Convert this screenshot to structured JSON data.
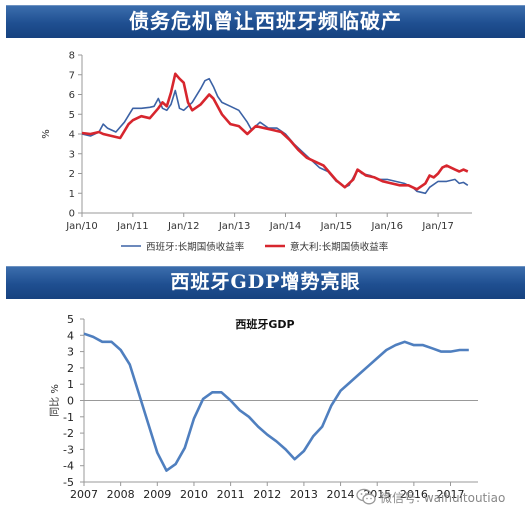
{
  "banner1": "债务危机曾让西班牙频临破产",
  "banner2": "西班牙GDP增势亮眼",
  "watermark": "微信号: waihuitoutiao",
  "colors": {
    "banner": "#1f4f91",
    "spain": "#3c62a5",
    "italy": "#d7262e",
    "gdp": "#4f7fbf",
    "axis": "#999999"
  },
  "chart_data": [
    {
      "type": "line",
      "title": "",
      "xlabel": "",
      "ylabel": "%",
      "ylim": [
        0,
        8
      ],
      "yticks": [
        "0",
        "1",
        "2",
        "3",
        "4",
        "5",
        "6",
        "7",
        "8"
      ],
      "xlim": [
        "2010-01",
        "2017-09"
      ],
      "xticks": [
        {
          "x": "2010-01",
          "label": "Jan/10"
        },
        {
          "x": "2011-01",
          "label": "Jan/11"
        },
        {
          "x": "2012-01",
          "label": "Jan/12"
        },
        {
          "x": "2013-01",
          "label": "Jan/13"
        },
        {
          "x": "2014-01",
          "label": "Jan/14"
        },
        {
          "x": "2015-01",
          "label": "Jan/15"
        },
        {
          "x": "2016-01",
          "label": "Jan/16"
        },
        {
          "x": "2017-01",
          "label": "Jan/17"
        }
      ],
      "grid": false,
      "legend": "bottom",
      "series": [
        {
          "name": "西班牙:长期国债收益率",
          "color": "#3c62a5",
          "x": [
            "2010-01",
            "2010-03",
            "2010-05",
            "2010-06",
            "2010-07",
            "2010-09",
            "2010-11",
            "2011-01",
            "2011-03",
            "2011-05",
            "2011-06",
            "2011-07",
            "2011-08",
            "2011-09",
            "2011-10",
            "2011-11",
            "2011-12",
            "2012-01",
            "2012-03",
            "2012-05",
            "2012-06",
            "2012-07",
            "2012-08",
            "2012-09",
            "2012-10",
            "2012-12",
            "2013-02",
            "2013-04",
            "2013-05",
            "2013-07",
            "2013-09",
            "2013-11",
            "2014-01",
            "2014-03",
            "2014-05",
            "2014-07",
            "2014-09",
            "2014-11",
            "2015-01",
            "2015-02",
            "2015-03",
            "2015-04",
            "2015-06",
            "2015-07",
            "2015-09",
            "2015-11",
            "2016-01",
            "2016-03",
            "2016-05",
            "2016-07",
            "2016-08",
            "2016-10",
            "2016-11",
            "2017-01",
            "2017-03",
            "2017-05",
            "2017-06",
            "2017-07",
            "2017-08"
          ],
          "values": [
            4.0,
            3.9,
            4.1,
            4.5,
            4.3,
            4.1,
            4.6,
            5.3,
            5.3,
            5.35,
            5.4,
            5.8,
            5.3,
            5.2,
            5.5,
            6.2,
            5.3,
            5.2,
            5.6,
            6.3,
            6.7,
            6.8,
            6.4,
            5.9,
            5.6,
            5.4,
            5.2,
            4.6,
            4.2,
            4.6,
            4.3,
            4.3,
            4.0,
            3.5,
            3.1,
            2.7,
            2.3,
            2.1,
            1.6,
            1.5,
            1.3,
            1.4,
            2.2,
            2.0,
            1.9,
            1.7,
            1.7,
            1.6,
            1.5,
            1.3,
            1.1,
            1.0,
            1.3,
            1.6,
            1.6,
            1.7,
            1.5,
            1.55,
            1.4
          ]
        },
        {
          "name": "意大利:长期国债收益率",
          "color": "#d7262e",
          "x": [
            "2010-01",
            "2010-03",
            "2010-05",
            "2010-06",
            "2010-08",
            "2010-10",
            "2010-12",
            "2011-01",
            "2011-03",
            "2011-05",
            "2011-07",
            "2011-08",
            "2011-09",
            "2011-10",
            "2011-11",
            "2011-12",
            "2012-01",
            "2012-02",
            "2012-03",
            "2012-05",
            "2012-07",
            "2012-08",
            "2012-10",
            "2012-12",
            "2013-02",
            "2013-04",
            "2013-06",
            "2013-08",
            "2013-10",
            "2013-12",
            "2014-02",
            "2014-04",
            "2014-06",
            "2014-08",
            "2014-10",
            "2014-12",
            "2015-01",
            "2015-03",
            "2015-05",
            "2015-06",
            "2015-08",
            "2015-10",
            "2015-12",
            "2016-02",
            "2016-04",
            "2016-06",
            "2016-08",
            "2016-10",
            "2016-11",
            "2016-12",
            "2017-01",
            "2017-02",
            "2017-03",
            "2017-04",
            "2017-05",
            "2017-06",
            "2017-07",
            "2017-08"
          ],
          "values": [
            4.05,
            4.0,
            4.1,
            4.0,
            3.9,
            3.8,
            4.5,
            4.7,
            4.9,
            4.8,
            5.3,
            5.6,
            5.4,
            6.1,
            7.05,
            6.8,
            6.6,
            5.6,
            5.2,
            5.5,
            6.0,
            5.8,
            5.0,
            4.5,
            4.4,
            4.0,
            4.4,
            4.3,
            4.2,
            4.1,
            3.7,
            3.2,
            2.8,
            2.6,
            2.4,
            1.9,
            1.65,
            1.3,
            1.7,
            2.2,
            1.9,
            1.8,
            1.6,
            1.5,
            1.4,
            1.4,
            1.2,
            1.5,
            1.9,
            1.8,
            2.0,
            2.3,
            2.4,
            2.3,
            2.2,
            2.1,
            2.2,
            2.1
          ]
        }
      ]
    },
    {
      "type": "line",
      "title": "西班牙GDP",
      "xlabel": "",
      "ylabel": "同比 %",
      "ylim": [
        -5,
        5
      ],
      "yticks": [
        "-5",
        "-4",
        "-3",
        "-2",
        "-1",
        "0",
        "1",
        "2",
        "3",
        "4",
        "5"
      ],
      "xlim": [
        2007,
        2017.75
      ],
      "xticks": [
        "2007",
        "2008",
        "2009",
        "2010",
        "2011",
        "2012",
        "2013",
        "2014",
        "2015",
        "2016",
        "2017"
      ],
      "grid": false,
      "legend": "none",
      "series": [
        {
          "x": [
            2007.0,
            2007.25,
            2007.5,
            2007.75,
            2008.0,
            2008.25,
            2008.5,
            2008.75,
            2009.0,
            2009.25,
            2009.5,
            2009.75,
            2010.0,
            2010.25,
            2010.5,
            2010.75,
            2011.0,
            2011.25,
            2011.5,
            2011.75,
            2012.0,
            2012.25,
            2012.5,
            2012.75,
            2013.0,
            2013.25,
            2013.5,
            2013.75,
            2014.0,
            2014.25,
            2014.5,
            2014.75,
            2015.0,
            2015.25,
            2015.5,
            2015.75,
            2016.0,
            2016.25,
            2016.5,
            2016.75,
            2017.0,
            2017.25,
            2017.5
          ],
          "values": [
            4.1,
            3.9,
            3.6,
            3.6,
            3.1,
            2.2,
            0.4,
            -1.4,
            -3.2,
            -4.3,
            -3.9,
            -2.9,
            -1.1,
            0.1,
            0.5,
            0.5,
            0.0,
            -0.6,
            -1.0,
            -1.6,
            -2.1,
            -2.5,
            -3.0,
            -3.6,
            -3.1,
            -2.2,
            -1.6,
            -0.3,
            0.6,
            1.1,
            1.6,
            2.1,
            2.6,
            3.1,
            3.4,
            3.6,
            3.4,
            3.4,
            3.2,
            3.0,
            3.0,
            3.1,
            3.1
          ]
        }
      ]
    }
  ]
}
